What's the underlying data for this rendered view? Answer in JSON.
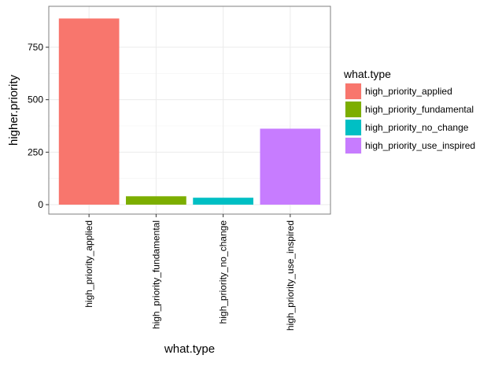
{
  "chart_data": {
    "type": "bar",
    "categories": [
      "high_priority_applied",
      "high_priority_fundamental",
      "high_priority_no_change",
      "high_priority_use_inspired"
    ],
    "values": [
      887,
      40,
      33,
      362
    ],
    "colors": [
      "#F8766D",
      "#7CAE00",
      "#00BFC4",
      "#C77CFF"
    ],
    "xlabel": "what.type",
    "ylabel": "higher.priority",
    "ylim": [
      -45,
      945
    ],
    "yticks": [
      0,
      250,
      500,
      750
    ],
    "grid": true,
    "legend": {
      "title": "what.type",
      "position": "right",
      "entries": [
        "high_priority_applied",
        "high_priority_fundamental",
        "high_priority_no_change",
        "high_priority_use_inspired"
      ]
    }
  }
}
